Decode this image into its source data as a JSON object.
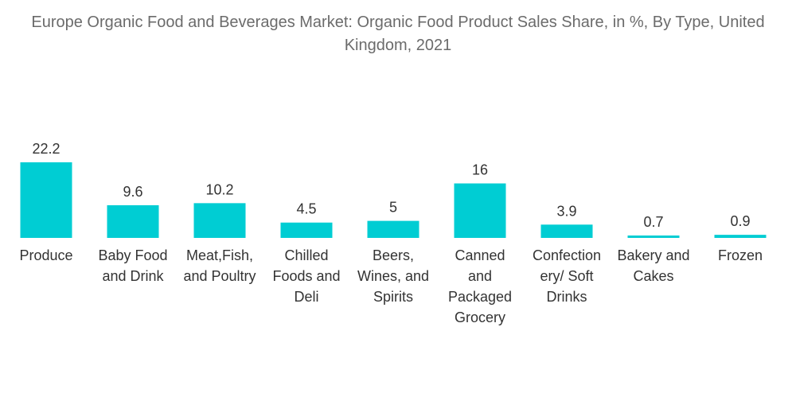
{
  "chart_data": {
    "type": "bar",
    "title": "Europe Organic Food and Beverages Market: Organic Food Product Sales Share, in %, By Type, United Kingdom, 2021",
    "xlabel": "",
    "ylabel": "",
    "ylim": [
      0,
      22.2
    ],
    "grid": false,
    "bar_color": "#00CDD3",
    "categories": [
      "Produce",
      "Baby Food and Drink",
      "Meat,Fish, and Poultry",
      "Chilled Foods and Deli",
      "Beers, Wines, and Spirits",
      "Canned and Packaged Grocery",
      "Confectionery/ Soft Drinks",
      "Bakery and Cakes",
      "Frozen"
    ],
    "category_label_lines": [
      [
        "Produce"
      ],
      [
        "Baby Food",
        "and Drink"
      ],
      [
        "Meat,Fish,",
        "and Poultry"
      ],
      [
        "Chilled",
        "Foods and",
        "Deli"
      ],
      [
        "Beers,",
        "Wines, and",
        "Spirits"
      ],
      [
        "Canned",
        "and",
        "Packaged",
        "Grocery"
      ],
      [
        "Confection",
        "ery/ Soft",
        "Drinks"
      ],
      [
        "Bakery and",
        "Cakes"
      ],
      [
        "Frozen"
      ]
    ],
    "values": [
      22.2,
      9.6,
      10.2,
      4.5,
      5,
      16,
      3.9,
      0.7,
      0.9
    ],
    "value_labels": [
      "22.2",
      "9.6",
      "10.2",
      "4.5",
      "5",
      "16",
      "3.9",
      "0.7",
      "0.9"
    ]
  }
}
